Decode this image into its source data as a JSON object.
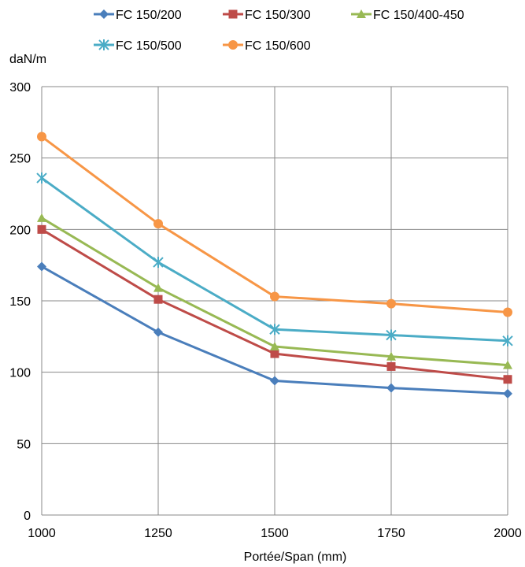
{
  "chart_data": {
    "type": "line",
    "title": "",
    "ylabel": "daN/m",
    "xlabel": "Portée/Span (mm)",
    "x": [
      1000,
      1250,
      1500,
      1750,
      2000
    ],
    "xlim": [
      1000,
      2000
    ],
    "ylim": [
      0,
      300
    ],
    "yticks": [
      0,
      50,
      100,
      150,
      200,
      250,
      300
    ],
    "grid": true,
    "legend_position": "top",
    "series": [
      {
        "name": "FC 150/200",
        "color": "#4a7ebb",
        "marker": "diamond",
        "values": [
          174,
          128,
          94,
          89,
          85
        ]
      },
      {
        "name": "FC 150/300",
        "color": "#be4b48",
        "marker": "square",
        "values": [
          200,
          151,
          113,
          104,
          95
        ]
      },
      {
        "name": "FC 150/400-450",
        "color": "#98b954",
        "marker": "triangle",
        "values": [
          208,
          159,
          118,
          111,
          105
        ]
      },
      {
        "name": "FC 150/500",
        "color": "#4bacc6",
        "marker": "asterisk",
        "values": [
          236,
          177,
          130,
          126,
          122
        ]
      },
      {
        "name": "FC 150/600",
        "color": "#f79646",
        "marker": "circle",
        "values": [
          265,
          204,
          153,
          148,
          142
        ]
      }
    ]
  }
}
